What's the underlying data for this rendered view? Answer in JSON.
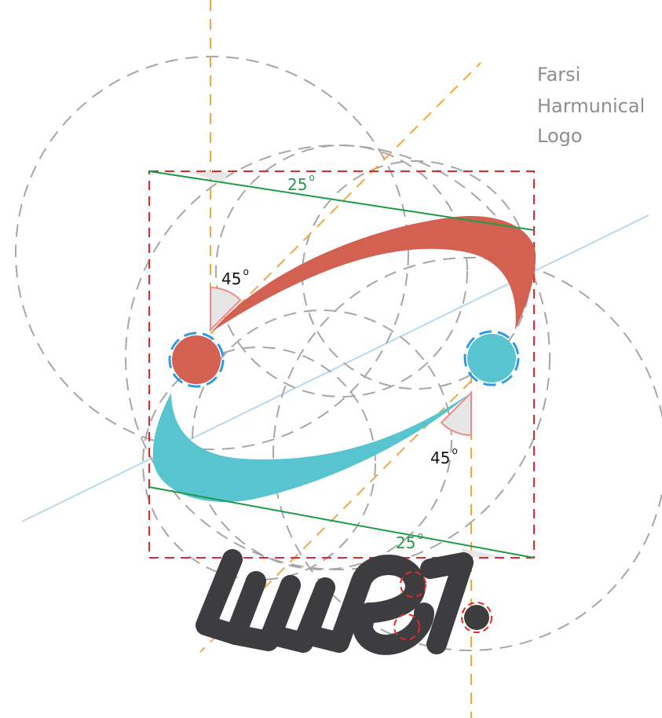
{
  "title": {
    "lines": [
      "Farsi",
      "Harmunical",
      "Logo"
    ]
  },
  "angles": {
    "top_green": {
      "value": "25",
      "unit": "o"
    },
    "upper_left": {
      "value": "45",
      "unit": "o"
    },
    "lower_right": {
      "value": "45",
      "unit": "o"
    },
    "bottom_green": {
      "value": "25",
      "unit": "o"
    }
  },
  "colors": {
    "red_swoosh": "#d26152",
    "teal_swoosh": "#57c4cf",
    "guide_orange": "#f2a93b",
    "guide_gray": "#a6a6a6",
    "guide_red_box": "#e02a2a",
    "guide_green": "#1f9a48",
    "guide_blue": "#2f9be0",
    "diagonal_light_blue": "#b9d8ee",
    "lettering": "#3d3d3f",
    "angle_fill": "#e6e6e6",
    "angle_stroke": "#f08a8a"
  }
}
